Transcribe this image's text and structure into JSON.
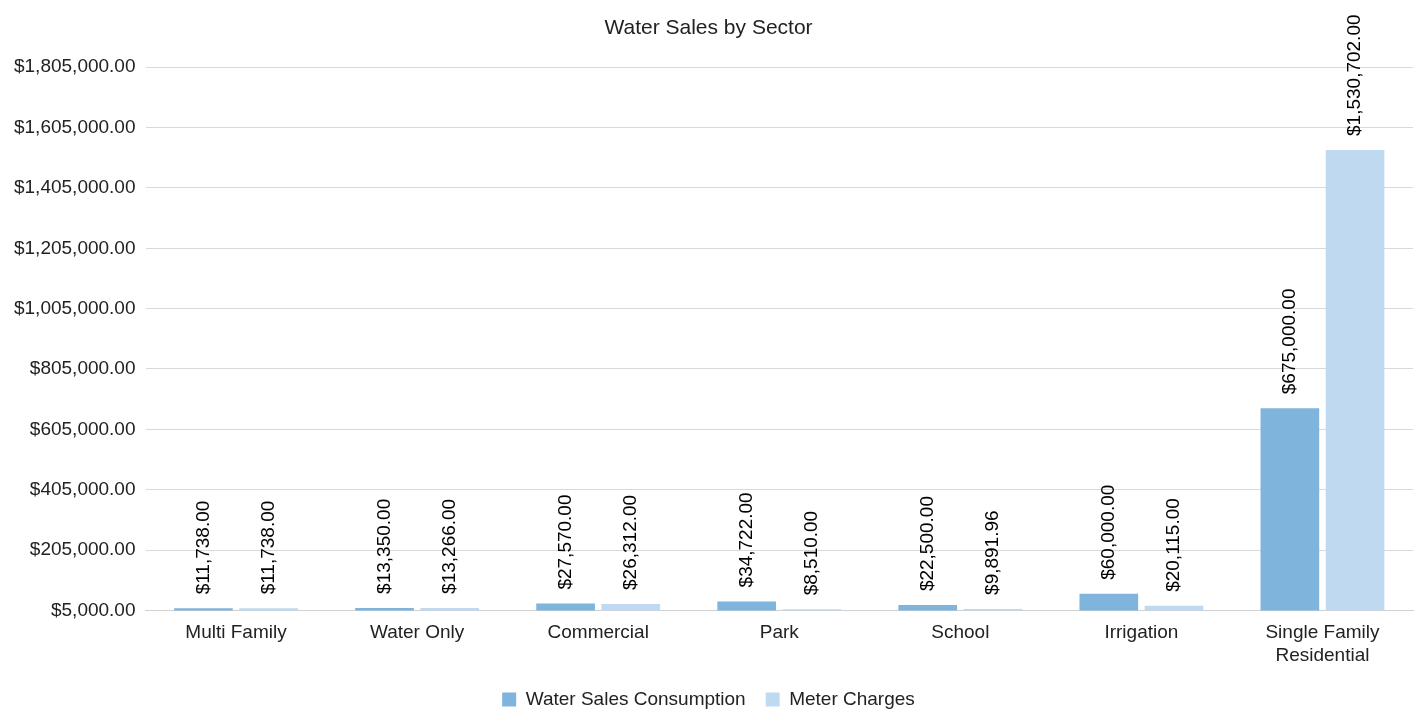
{
  "chart_data": {
    "type": "bar",
    "title": "Water Sales by Sector",
    "categories": [
      "Multi Family",
      "Water Only",
      "Commercial",
      "Park",
      "School",
      "Irrigation",
      "Single Family Residential"
    ],
    "series": [
      {
        "name": "Water Sales Consumption",
        "color": "#7fb4dc",
        "values": [
          11738,
          13350,
          27570,
          34722,
          22500,
          60000,
          675000
        ],
        "value_labels": [
          "$11,738.00",
          "$13,350.00",
          "$27,570.00",
          "$34,722.00",
          "$22,500.00",
          "$60,000.00",
          "$675,000.00"
        ]
      },
      {
        "name": "Meter Charges",
        "color": "#bfdaf0",
        "values": [
          11738,
          13266,
          26312,
          8510,
          9891.96,
          20115,
          1530702
        ],
        "value_labels": [
          "$11,738.00",
          "$13,266.00",
          "$26,312.00",
          "$8,510.00",
          "$9,891.96",
          "$20,115.00",
          "$1,530,702.00"
        ]
      }
    ],
    "ylim": [
      5000,
      1805000
    ],
    "yticks": [
      {
        "value": 5000,
        "label": "$5,000.00"
      },
      {
        "value": 205000,
        "label": "$205,000.00"
      },
      {
        "value": 405000,
        "label": "$405,000.00"
      },
      {
        "value": 605000,
        "label": "$605,000.00"
      },
      {
        "value": 805000,
        "label": "$805,000.00"
      },
      {
        "value": 1005000,
        "label": "$1,005,000.00"
      },
      {
        "value": 1205000,
        "label": "$1,205,000.00"
      },
      {
        "value": 1405000,
        "label": "$1,405,000.00"
      },
      {
        "value": 1605000,
        "label": "$1,605,000.00"
      },
      {
        "value": 1805000,
        "label": "$1,805,000.00"
      }
    ],
    "grid": "y",
    "legend": "bottom"
  }
}
